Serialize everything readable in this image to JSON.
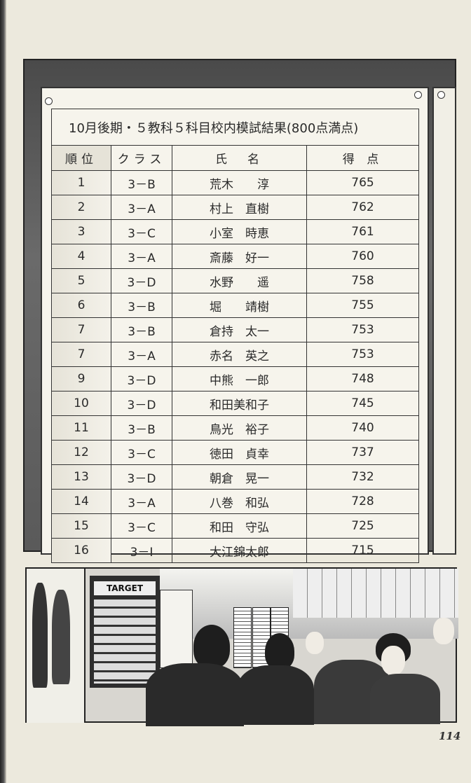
{
  "table": {
    "title": "10月後期・５教科５科目校内模試結果(800点満点)",
    "headers": {
      "rank": "順位",
      "class": "クラス",
      "name": "氏　名",
      "score": "得 点"
    },
    "rows": [
      {
        "rank": "1",
        "class": "3－B",
        "name": "荒木　　淳",
        "score": "765"
      },
      {
        "rank": "2",
        "class": "3－A",
        "name": "村上　直樹",
        "score": "762"
      },
      {
        "rank": "3",
        "class": "3－C",
        "name": "小室　時恵",
        "score": "761"
      },
      {
        "rank": "4",
        "class": "3－A",
        "name": "斎藤　好一",
        "score": "760"
      },
      {
        "rank": "5",
        "class": "3－D",
        "name": "水野　　遥",
        "score": "758"
      },
      {
        "rank": "6",
        "class": "3－B",
        "name": "堀　　靖樹",
        "score": "755"
      },
      {
        "rank": "7",
        "class": "3－B",
        "name": "倉持　太一",
        "score": "753"
      },
      {
        "rank": "7",
        "class": "3－A",
        "name": "赤名　英之",
        "score": "753"
      },
      {
        "rank": "9",
        "class": "3－D",
        "name": "中熊　一郎",
        "score": "748"
      },
      {
        "rank": "10",
        "class": "3－D",
        "name": "和田美和子",
        "score": "745"
      },
      {
        "rank": "11",
        "class": "3－B",
        "name": "鳥光　裕子",
        "score": "740"
      },
      {
        "rank": "12",
        "class": "3－C",
        "name": "徳田　貞幸",
        "score": "737"
      },
      {
        "rank": "13",
        "class": "3－D",
        "name": "朝倉　晃一",
        "score": "732"
      },
      {
        "rank": "14",
        "class": "3－A",
        "name": "八巻　和弘",
        "score": "728"
      },
      {
        "rank": "15",
        "class": "3－C",
        "name": "和田　守弘",
        "score": "725"
      },
      {
        "rank": "16",
        "class": "3－I",
        "name": "大江錦太郎",
        "score": "715"
      }
    ]
  },
  "illustration": {
    "sign_text": "TARGET"
  },
  "page_number": "114"
}
